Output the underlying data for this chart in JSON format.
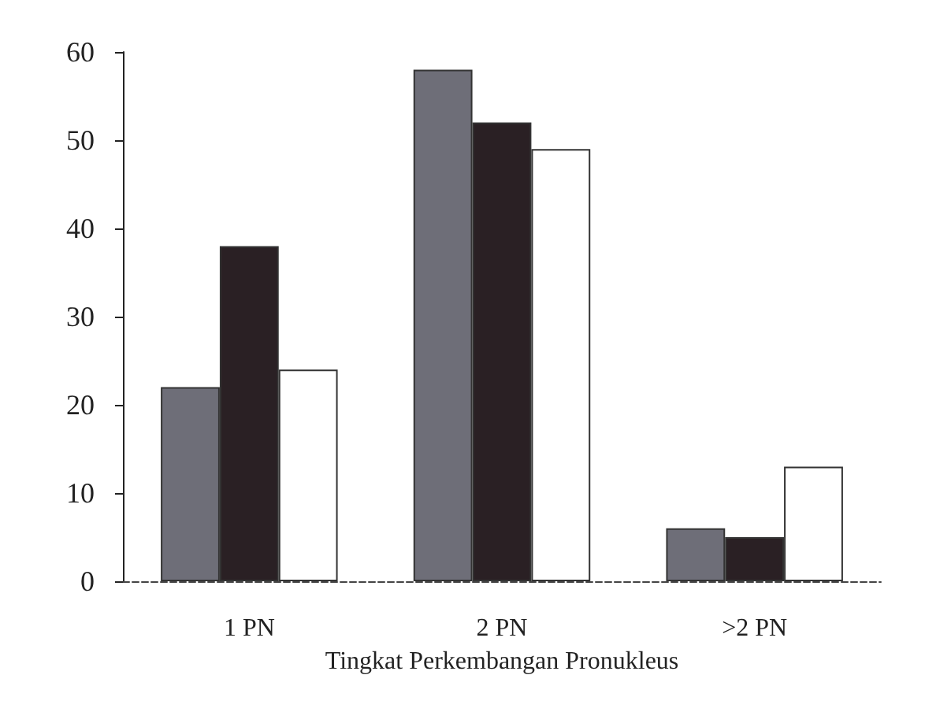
{
  "chart_data": {
    "type": "bar",
    "xlabel": "Tingkat Perkembangan Pronukleus",
    "categories": [
      "1 PN",
      "2 PN",
      ">2 PN"
    ],
    "series": [
      {
        "color": "#6e6e78",
        "values": [
          22,
          58,
          6
        ]
      },
      {
        "color": "#2a2024",
        "values": [
          38,
          52,
          5
        ]
      },
      {
        "color": "#ffffff",
        "values": [
          24,
          49,
          13
        ]
      }
    ],
    "ylim": [
      0,
      60
    ],
    "yticks": [
      0,
      10,
      20,
      30,
      40,
      50,
      60
    ],
    "grid": false
  }
}
